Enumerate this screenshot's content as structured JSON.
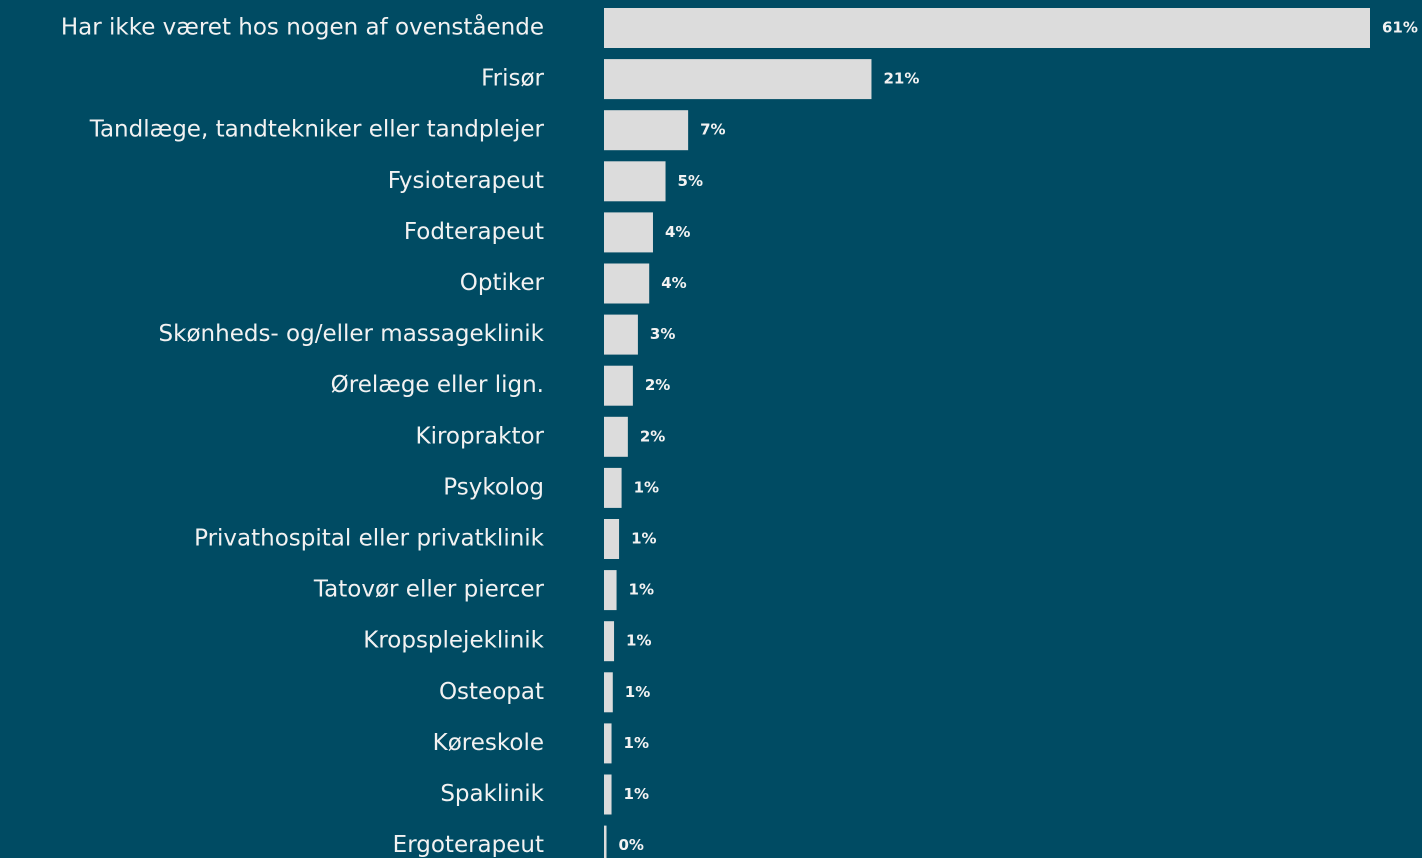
{
  "chart_data": {
    "type": "barh",
    "categories": [
      "Har ikke været hos nogen af ovenstående",
      "Frisør",
      "Tandlæge, tandtekniker eller tandplejer",
      "Fysioterapeut",
      "Fodterapeut",
      "Optiker",
      "Skønheds- og/eller massageklinik",
      "Ørelæge eller lign.",
      "Kiropraktor",
      "Psykolog",
      "Privathospital eller privatklinik",
      "Tatovør eller piercer",
      "Kropsplejeklinik",
      "Osteopat",
      "Køreskole",
      "Spaklinik",
      "Ergoterapeut"
    ],
    "values": [
      61,
      21.3,
      6.7,
      4.9,
      3.9,
      3.6,
      2.7,
      2.3,
      1.9,
      1.4,
      1.2,
      1.0,
      0.8,
      0.7,
      0.6,
      0.6,
      0.2
    ],
    "value_labels": [
      "61%",
      "21%",
      "7%",
      "5%",
      "4%",
      "4%",
      "3%",
      "2%",
      "2%",
      "1%",
      "1%",
      "1%",
      "1%",
      "1%",
      "1%",
      "1%",
      "0%"
    ],
    "color": "#dcdcdc"
  }
}
